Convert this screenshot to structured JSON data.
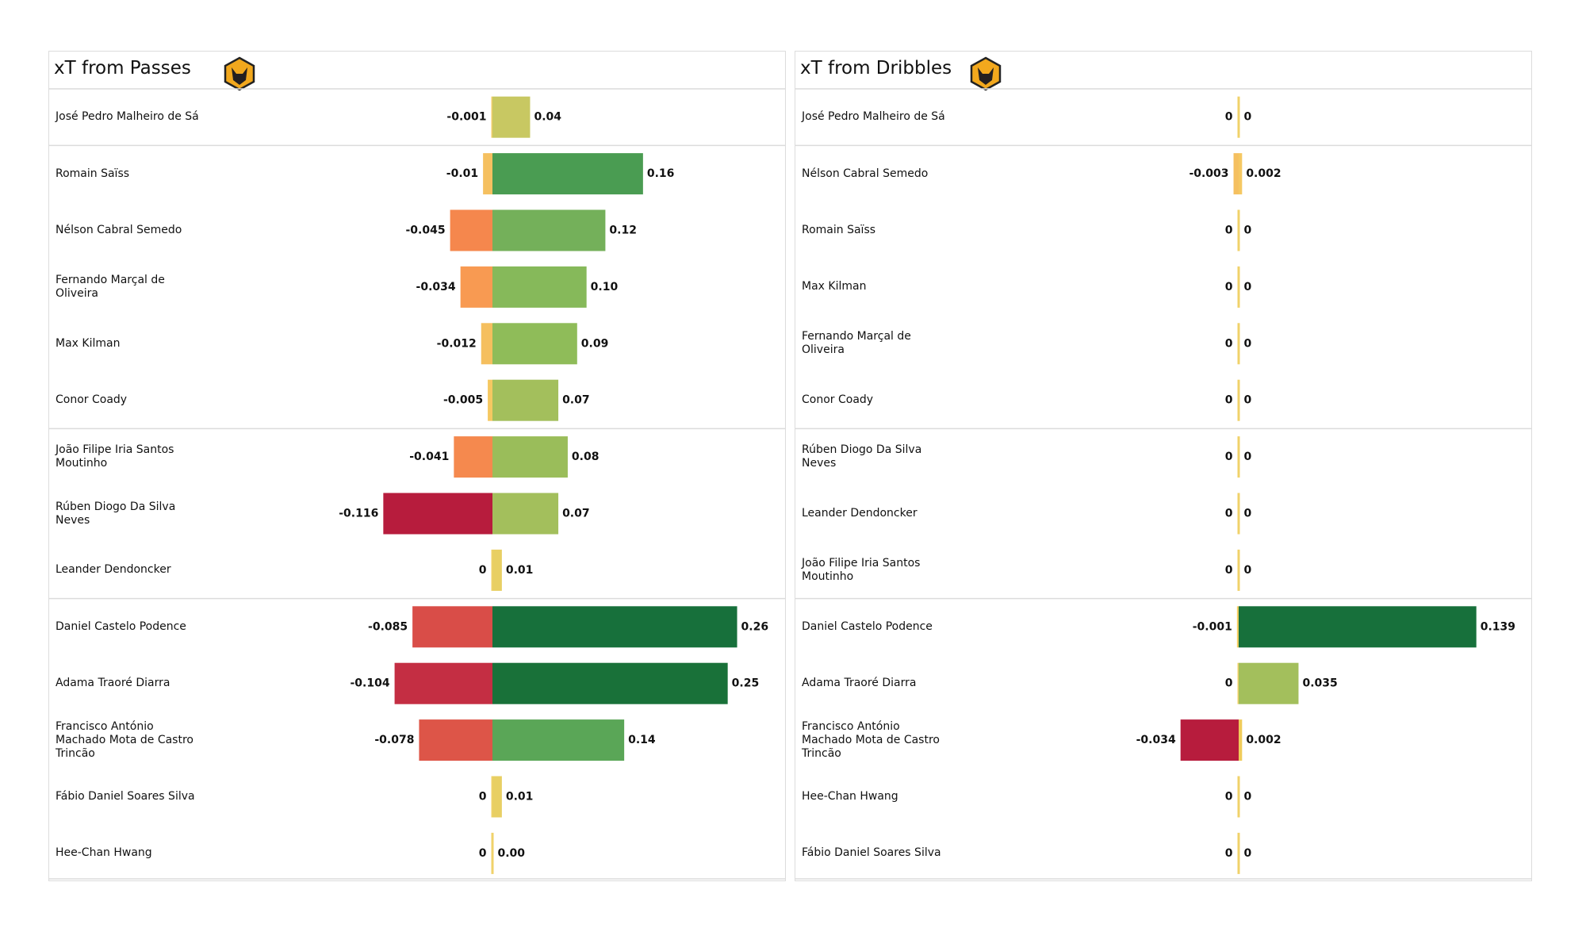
{
  "chart_data": [
    {
      "type": "diverging-bar",
      "title": "xT from Passes",
      "categories": [
        "José Pedro Malheiro de Sá",
        "Romain Saïss",
        "Nélson Cabral Semedo",
        "Fernando Marçal de Oliveira",
        "Max Kilman",
        "Conor  Coady",
        "João Filipe Iria Santos Moutinho",
        "Rúben Diogo Da Silva Neves",
        "Leander Dendoncker",
        "Daniel Castelo Podence",
        "Adama Traoré Diarra",
        "Francisco António Machado Mota de Castro Trincão",
        "Fábio Daniel Soares Silva",
        "Hee-Chan Hwang"
      ],
      "series": [
        {
          "values": [
            -0.001,
            -0.01,
            -0.045,
            -0.034,
            -0.012,
            -0.005,
            -0.041,
            -0.116,
            0,
            -0.085,
            -0.104,
            -0.078,
            0,
            0
          ],
          "colors": [
            "#f2cd6a",
            "#f5c060",
            "#f5874d",
            "#f89a52",
            "#f5bf5e",
            "#f5c862",
            "#f5894e",
            "#b71c3d",
            "#f0d26a",
            "#d94d48",
            "#c42e43",
            "#dd5548",
            "#f0d26a",
            "#f0d26a"
          ]
        },
        {
          "values": [
            0.04,
            0.16,
            0.12,
            0.1,
            0.09,
            0.07,
            0.08,
            0.07,
            0.01,
            0.26,
            0.25,
            0.14,
            0.01,
            0
          ],
          "value_labels": [
            "0.04",
            "0.16",
            "0.12",
            "0.10",
            "0.09",
            "0.07",
            "0.08",
            "0.07",
            "0.01",
            "0.26",
            "0.25",
            "0.14",
            "0.01",
            "0.00"
          ],
          "colors": [
            "#c8c862",
            "#4a9c52",
            "#74b05a",
            "#86b95a",
            "#8fbc59",
            "#a3bf5c",
            "#9abd5a",
            "#a3bf5c",
            "#e8cf63",
            "#17703b",
            "#197139",
            "#5aa657",
            "#e8cf63",
            "#f0d26a"
          ]
        }
      ],
      "xlim": [
        -0.3,
        0.3
      ]
    },
    {
      "type": "diverging-bar",
      "title": "xT from Dribbles",
      "categories": [
        "José Pedro Malheiro de Sá",
        "Nélson Cabral Semedo",
        "Romain Saïss",
        "Max Kilman",
        "Fernando Marçal de Oliveira",
        "Conor  Coady",
        "Rúben Diogo Da Silva Neves",
        "Leander Dendoncker",
        "João Filipe Iria Santos Moutinho",
        "Daniel Castelo Podence",
        "Adama Traoré Diarra",
        "Francisco António Machado Mota de Castro Trincão",
        "Hee-Chan Hwang",
        "Fábio Daniel Soares Silva"
      ],
      "series": [
        {
          "values": [
            0,
            -0.003,
            0,
            0,
            0,
            0,
            0,
            0,
            0,
            -0.001,
            0,
            -0.034,
            0,
            0
          ],
          "colors": [
            "#f0d26a",
            "#f5c060",
            "#f0d26a",
            "#f0d26a",
            "#f0d26a",
            "#f0d26a",
            "#f0d26a",
            "#f0d26a",
            "#f0d26a",
            "#f2cd62",
            "#f0d26a",
            "#b71c3d",
            "#f0d26a",
            "#f0d26a"
          ]
        },
        {
          "values": [
            0,
            0.002,
            0,
            0,
            0,
            0,
            0,
            0,
            0,
            0.139,
            0.035,
            0.002,
            0,
            0
          ],
          "colors": [
            "#f0d26a",
            "#f5c862",
            "#f0d26a",
            "#f0d26a",
            "#f0d26a",
            "#f0d26a",
            "#f0d26a",
            "#f0d26a",
            "#f0d26a",
            "#17703b",
            "#a3bf5c",
            "#f0cc5a",
            "#f0d26a",
            "#f0d26a"
          ]
        }
      ],
      "xlim": [
        -0.16,
        0.16
      ]
    }
  ]
}
